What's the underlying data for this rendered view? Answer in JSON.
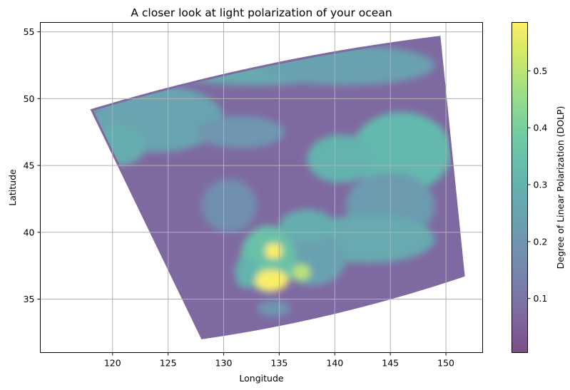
{
  "chart_data": {
    "type": "heatmap",
    "title": "A closer look at light polarization of your ocean",
    "xlabel": "Longitude",
    "ylabel": "Latitude",
    "xlim": [
      113.5,
      153.3
    ],
    "ylim": [
      31.0,
      55.7
    ],
    "xticks": [
      {
        "value": 120,
        "label": "120"
      },
      {
        "value": 125,
        "label": "125"
      },
      {
        "value": 130,
        "label": "130"
      },
      {
        "value": 135,
        "label": "135"
      },
      {
        "value": 140,
        "label": "140"
      },
      {
        "value": 145,
        "label": "145"
      },
      {
        "value": 150,
        "label": "150"
      }
    ],
    "yticks": [
      {
        "value": 35,
        "label": "35"
      },
      {
        "value": 40,
        "label": "40"
      },
      {
        "value": 45,
        "label": "45"
      },
      {
        "value": 50,
        "label": "50"
      },
      {
        "value": 55,
        "label": "55"
      }
    ],
    "grid": true,
    "colorbar": {
      "label": "Degree of Linear Polarization (DOLP)",
      "colormap": "viridis",
      "alpha": 0.7,
      "range": [
        0.005,
        0.585
      ],
      "ticks": [
        {
          "value": 0.1,
          "label": "0.1"
        },
        {
          "value": 0.2,
          "label": "0.2"
        },
        {
          "value": 0.3,
          "label": "0.3"
        },
        {
          "value": 0.4,
          "label": "0.4"
        },
        {
          "value": 0.5,
          "label": "0.5"
        }
      ]
    },
    "swath_corners": [
      {
        "lon": 118.0,
        "lat": 49.2
      },
      {
        "lon": 149.5,
        "lat": 54.7
      },
      {
        "lon": 151.7,
        "lat": 36.7
      },
      {
        "lon": 128.0,
        "lat": 32.0
      }
    ],
    "background_value": 0.07,
    "features": [
      {
        "lon": 124.0,
        "lat": 48.5,
        "value": 0.25,
        "rx": 6.0,
        "ry": 2.5
      },
      {
        "lon": 120.5,
        "lat": 46.5,
        "value": 0.28,
        "rx": 2.5,
        "ry": 1.5
      },
      {
        "lon": 133.0,
        "lat": 52.5,
        "value": 0.27,
        "rx": 9.0,
        "ry": 1.5
      },
      {
        "lon": 141.0,
        "lat": 52.5,
        "value": 0.24,
        "rx": 8.0,
        "ry": 1.5
      },
      {
        "lon": 146.0,
        "lat": 46.0,
        "value": 0.32,
        "rx": 4.5,
        "ry": 3.0
      },
      {
        "lon": 140.5,
        "lat": 45.5,
        "value": 0.3,
        "rx": 3.0,
        "ry": 1.8
      },
      {
        "lon": 145.0,
        "lat": 42.0,
        "value": 0.22,
        "rx": 4.0,
        "ry": 2.5
      },
      {
        "lon": 143.0,
        "lat": 39.5,
        "value": 0.27,
        "rx": 6.0,
        "ry": 1.8
      },
      {
        "lon": 138.0,
        "lat": 38.0,
        "value": 0.24,
        "rx": 3.0,
        "ry": 2.0
      },
      {
        "lon": 131.5,
        "lat": 47.5,
        "value": 0.2,
        "rx": 4.0,
        "ry": 1.2
      },
      {
        "lon": 130.5,
        "lat": 42.0,
        "value": 0.18,
        "rx": 2.5,
        "ry": 2.0
      },
      {
        "lon": 134.0,
        "lat": 38.0,
        "value": 0.35,
        "rx": 2.5,
        "ry": 2.5
      },
      {
        "lon": 134.5,
        "lat": 38.6,
        "value": 0.58,
        "rx": 0.8,
        "ry": 0.6
      },
      {
        "lon": 134.3,
        "lat": 36.4,
        "value": 0.58,
        "rx": 1.5,
        "ry": 0.8
      },
      {
        "lon": 137.0,
        "lat": 37.0,
        "value": 0.5,
        "rx": 0.8,
        "ry": 0.6
      },
      {
        "lon": 132.0,
        "lat": 37.0,
        "value": 0.3,
        "rx": 1.0,
        "ry": 1.2
      },
      {
        "lon": 134.5,
        "lat": 34.3,
        "value": 0.2,
        "rx": 1.5,
        "ry": 0.6
      },
      {
        "lon": 137.5,
        "lat": 40.5,
        "value": 0.28,
        "rx": 2.5,
        "ry": 1.2
      }
    ]
  }
}
